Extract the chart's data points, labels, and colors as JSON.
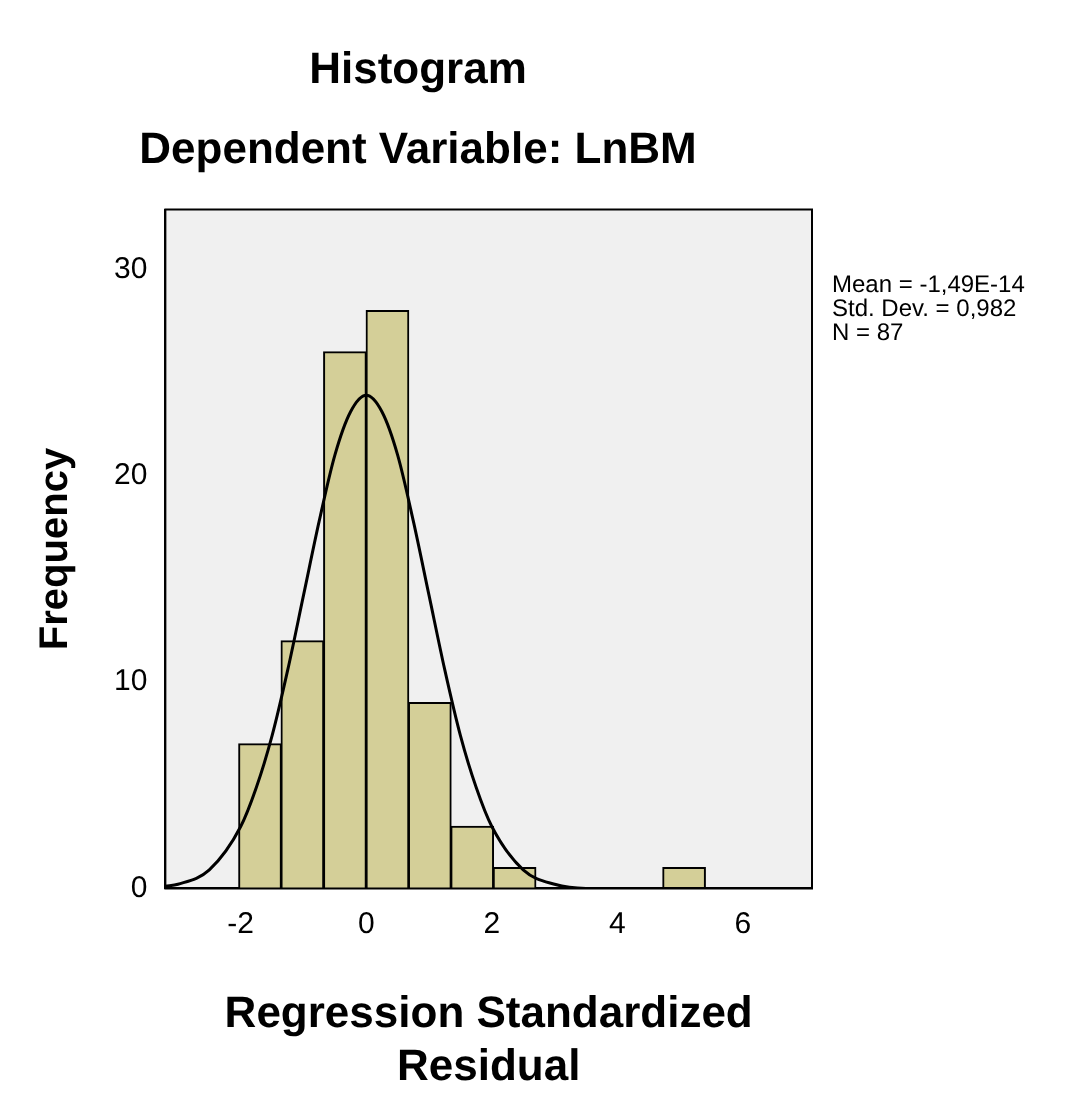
{
  "chart_data": {
    "type": "histogram",
    "title": "Histogram",
    "subtitle": "Dependent Variable: LnBM",
    "xlabel": "Regression Standardized Residual",
    "ylabel": "Frequency",
    "bins": [
      -2.03,
      -1.355,
      -0.68,
      0,
      0.675,
      1.35,
      2.025,
      2.7,
      3.375,
      4.05,
      4.725,
      5.4
    ],
    "values": [
      7,
      12,
      26,
      28,
      9,
      3,
      1,
      0,
      0,
      0,
      1
    ],
    "color": "#d4cf98",
    "series": [
      {
        "type": "line",
        "color": "#000000",
        "x": [
          -3.2,
          -3,
          -2.5,
          -2,
          -1.75,
          -1.5,
          -1.25,
          -1,
          -0.75,
          -0.5,
          -0.25,
          0,
          0.25,
          0.5,
          0.75,
          1,
          1.25,
          1.5,
          1.75,
          2,
          2.5,
          3,
          3.5,
          4,
          5,
          6,
          7.1
        ],
        "values": [
          0.1,
          0.2,
          0.9,
          3,
          4.9,
          7.4,
          10.6,
          14.2,
          17.8,
          21,
          23.1,
          23.9,
          23.1,
          21,
          17.8,
          14.2,
          10.6,
          7.4,
          4.9,
          3,
          0.9,
          0.2,
          0,
          0,
          0,
          0,
          0
        ]
      }
    ],
    "xlim": [
      -3.2,
      7.1
    ],
    "xticks": [
      -2,
      0,
      2,
      4,
      6
    ],
    "ylim": [
      0,
      32.9
    ],
    "yticks": [
      0,
      10,
      20,
      30
    ],
    "grid": false,
    "legend": false,
    "annotations": [
      "Mean = -1,49E-14",
      "Std. Dev. = 0,982",
      "N = 87"
    ]
  }
}
